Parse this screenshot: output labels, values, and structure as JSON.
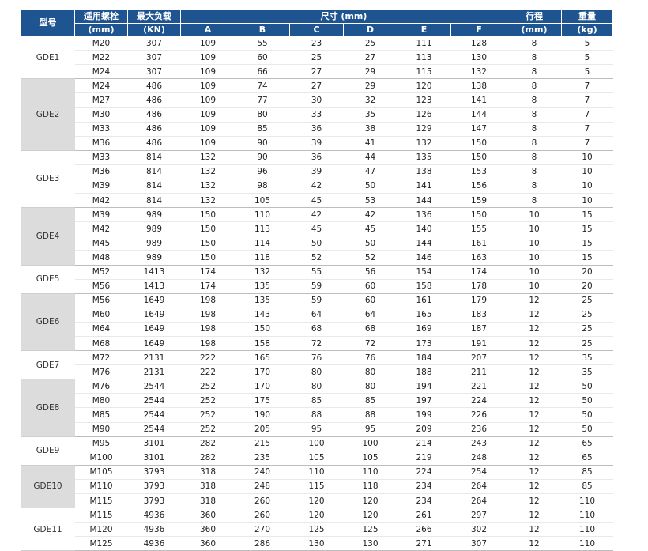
{
  "headers": {
    "model": "型号",
    "bolt": "适用螺栓",
    "bolt_unit": "(mm)",
    "load": "最大负载",
    "load_unit": "(KN)",
    "size": "尺寸 (mm)",
    "dims": [
      "A",
      "B",
      "C",
      "D",
      "E",
      "F"
    ],
    "stroke": "行程",
    "stroke_unit": "(mm)",
    "weight": "重量",
    "weight_unit": "(kg)"
  },
  "groups": [
    {
      "model": "GDE1",
      "rows": [
        [
          "M20",
          "307",
          "109",
          "55",
          "23",
          "25",
          "111",
          "128",
          "8",
          "5"
        ],
        [
          "M22",
          "307",
          "109",
          "60",
          "25",
          "27",
          "113",
          "130",
          "8",
          "5"
        ],
        [
          "M24",
          "307",
          "109",
          "66",
          "27",
          "29",
          "115",
          "132",
          "8",
          "5"
        ]
      ]
    },
    {
      "model": "GDE2",
      "rows": [
        [
          "M24",
          "486",
          "109",
          "74",
          "27",
          "29",
          "120",
          "138",
          "8",
          "7"
        ],
        [
          "M27",
          "486",
          "109",
          "77",
          "30",
          "32",
          "123",
          "141",
          "8",
          "7"
        ],
        [
          "M30",
          "486",
          "109",
          "80",
          "33",
          "35",
          "126",
          "144",
          "8",
          "7"
        ],
        [
          "M33",
          "486",
          "109",
          "85",
          "36",
          "38",
          "129",
          "147",
          "8",
          "7"
        ],
        [
          "M36",
          "486",
          "109",
          "90",
          "39",
          "41",
          "132",
          "150",
          "8",
          "7"
        ]
      ]
    },
    {
      "model": "GDE3",
      "rows": [
        [
          "M33",
          "814",
          "132",
          "90",
          "36",
          "44",
          "135",
          "150",
          "8",
          "10"
        ],
        [
          "M36",
          "814",
          "132",
          "96",
          "39",
          "47",
          "138",
          "153",
          "8",
          "10"
        ],
        [
          "M39",
          "814",
          "132",
          "98",
          "42",
          "50",
          "141",
          "156",
          "8",
          "10"
        ],
        [
          "M42",
          "814",
          "132",
          "105",
          "45",
          "53",
          "144",
          "159",
          "8",
          "10"
        ]
      ]
    },
    {
      "model": "GDE4",
      "rows": [
        [
          "M39",
          "989",
          "150",
          "110",
          "42",
          "42",
          "136",
          "150",
          "10",
          "15"
        ],
        [
          "M42",
          "989",
          "150",
          "113",
          "45",
          "45",
          "140",
          "155",
          "10",
          "15"
        ],
        [
          "M45",
          "989",
          "150",
          "114",
          "50",
          "50",
          "144",
          "161",
          "10",
          "15"
        ],
        [
          "M48",
          "989",
          "150",
          "118",
          "52",
          "52",
          "146",
          "163",
          "10",
          "15"
        ]
      ]
    },
    {
      "model": "GDE5",
      "rows": [
        [
          "M52",
          "1413",
          "174",
          "132",
          "55",
          "56",
          "154",
          "174",
          "10",
          "20"
        ],
        [
          "M56",
          "1413",
          "174",
          "135",
          "59",
          "60",
          "158",
          "178",
          "10",
          "20"
        ]
      ]
    },
    {
      "model": "GDE6",
      "rows": [
        [
          "M56",
          "1649",
          "198",
          "135",
          "59",
          "60",
          "161",
          "179",
          "12",
          "25"
        ],
        [
          "M60",
          "1649",
          "198",
          "143",
          "64",
          "64",
          "165",
          "183",
          "12",
          "25"
        ],
        [
          "M64",
          "1649",
          "198",
          "150",
          "68",
          "68",
          "169",
          "187",
          "12",
          "25"
        ],
        [
          "M68",
          "1649",
          "198",
          "158",
          "72",
          "72",
          "173",
          "191",
          "12",
          "25"
        ]
      ]
    },
    {
      "model": "GDE7",
      "rows": [
        [
          "M72",
          "2131",
          "222",
          "165",
          "76",
          "76",
          "184",
          "207",
          "12",
          "35"
        ],
        [
          "M76",
          "2131",
          "222",
          "170",
          "80",
          "80",
          "188",
          "211",
          "12",
          "35"
        ]
      ]
    },
    {
      "model": "GDE8",
      "rows": [
        [
          "M76",
          "2544",
          "252",
          "170",
          "80",
          "80",
          "194",
          "221",
          "12",
          "50"
        ],
        [
          "M80",
          "2544",
          "252",
          "175",
          "85",
          "85",
          "197",
          "224",
          "12",
          "50"
        ],
        [
          "M85",
          "2544",
          "252",
          "190",
          "88",
          "88",
          "199",
          "226",
          "12",
          "50"
        ],
        [
          "M90",
          "2544",
          "252",
          "205",
          "95",
          "95",
          "209",
          "236",
          "12",
          "50"
        ]
      ]
    },
    {
      "model": "GDE9",
      "rows": [
        [
          "M95",
          "3101",
          "282",
          "215",
          "100",
          "100",
          "214",
          "243",
          "12",
          "65"
        ],
        [
          "M100",
          "3101",
          "282",
          "235",
          "105",
          "105",
          "219",
          "248",
          "12",
          "65"
        ]
      ]
    },
    {
      "model": "GDE10",
      "rows": [
        [
          "M105",
          "3793",
          "318",
          "240",
          "110",
          "110",
          "224",
          "254",
          "12",
          "85"
        ],
        [
          "M110",
          "3793",
          "318",
          "248",
          "115",
          "118",
          "234",
          "264",
          "12",
          "85"
        ],
        [
          "M115",
          "3793",
          "318",
          "260",
          "120",
          "120",
          "234",
          "264",
          "12",
          "110"
        ]
      ]
    },
    {
      "model": "GDE11",
      "rows": [
        [
          "M115",
          "4936",
          "360",
          "260",
          "120",
          "120",
          "261",
          "297",
          "12",
          "110"
        ],
        [
          "M120",
          "4936",
          "360",
          "270",
          "125",
          "125",
          "266",
          "302",
          "12",
          "110"
        ],
        [
          "M125",
          "4936",
          "360",
          "286",
          "130",
          "130",
          "271",
          "307",
          "12",
          "110"
        ]
      ]
    }
  ],
  "colors": {
    "header_bg": "#1e5591",
    "shade_bg": "#dcdcdc"
  }
}
